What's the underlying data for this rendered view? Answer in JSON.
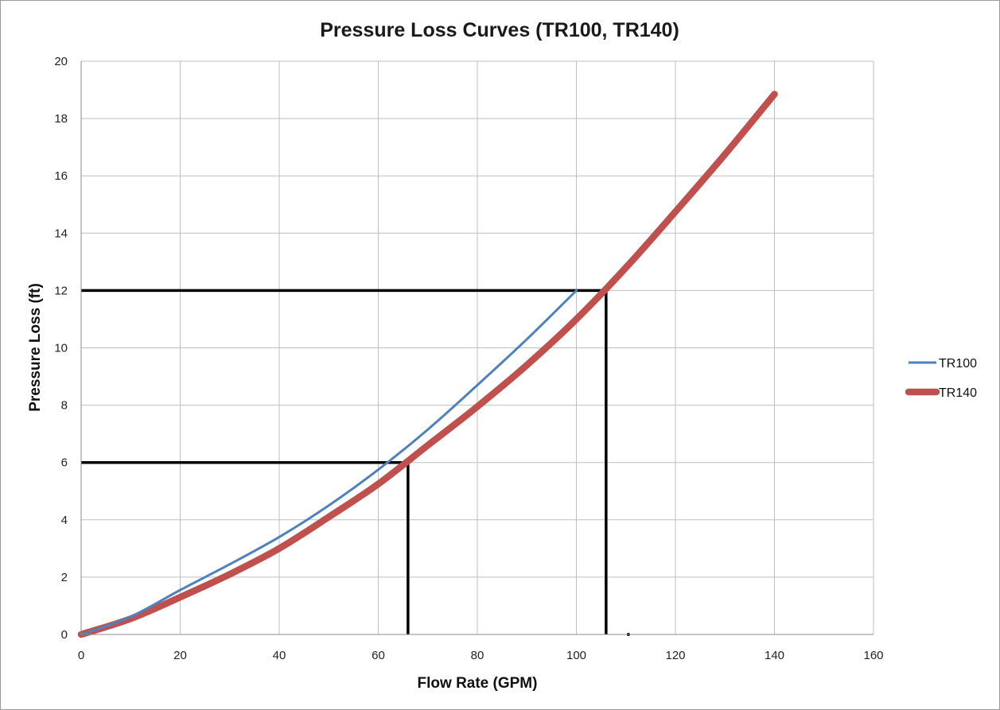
{
  "chart_data": {
    "type": "line",
    "title": "Pressure Loss Curves (TR100, TR140)",
    "xlabel": "Flow Rate (GPM)",
    "ylabel": "Pressure Loss (ft)",
    "xlim": [
      0,
      160
    ],
    "ylim": [
      0,
      20
    ],
    "x_ticks": [
      "0",
      "20",
      "40",
      "60",
      "80",
      "100",
      "120",
      "140",
      "160"
    ],
    "y_ticks": [
      "0",
      "2",
      "4",
      "6",
      "8",
      "10",
      "12",
      "14",
      "16",
      "18",
      "20"
    ],
    "grid": true,
    "legend_position": "right",
    "series": [
      {
        "name": "TR100",
        "color": "#4f81bd",
        "x": [
          0,
          10,
          20,
          30,
          40,
          50,
          60,
          70,
          80,
          90,
          100
        ],
        "y": [
          0,
          0.62,
          1.55,
          2.45,
          3.4,
          4.5,
          5.75,
          7.15,
          8.7,
          10.3,
          12.0
        ]
      },
      {
        "name": "TR140",
        "color": "#c0504d",
        "x": [
          0,
          10,
          20,
          30,
          40,
          50,
          60,
          70,
          80,
          90,
          100,
          110,
          120,
          130,
          140
        ],
        "y": [
          0,
          0.55,
          1.3,
          2.1,
          3.0,
          4.1,
          5.25,
          6.6,
          7.95,
          9.4,
          11.0,
          12.8,
          14.75,
          16.75,
          18.85
        ]
      }
    ],
    "reference_lines": [
      {
        "color": "#000000",
        "x": [
          0,
          66,
          66
        ],
        "y": [
          6,
          6,
          0
        ]
      },
      {
        "color": "#000000",
        "x": [
          0,
          106,
          106
        ],
        "y": [
          12,
          12,
          0
        ]
      }
    ],
    "markers": [
      {
        "color": "#000000",
        "x": 110.5,
        "y": 0
      }
    ]
  }
}
